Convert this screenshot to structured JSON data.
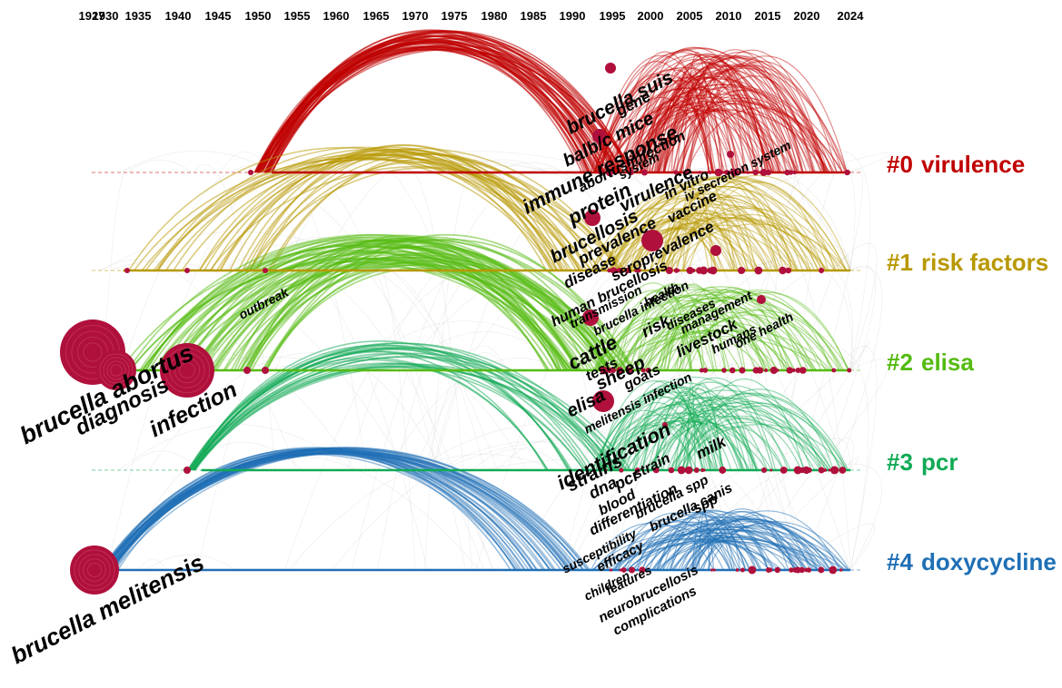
{
  "years": [
    "1927",
    "1930",
    "1935",
    "1940",
    "1945",
    "1950",
    "1955",
    "1960",
    "1965",
    "1970",
    "1975",
    "1980",
    "1985",
    "1990",
    "1995",
    "2000",
    "2005",
    "2010",
    "2015",
    "2020",
    "2024"
  ],
  "colors": {
    "year": "#ee22ee",
    "c0": "#c00000",
    "c1": "#b89800",
    "c2": "#55bb11",
    "c3": "#11aa55",
    "c4": "#1f6fb5",
    "node": "#b0103c",
    "node_ring": "#e0607a"
  },
  "clusters": [
    {
      "id": "#0",
      "label": "virulence",
      "color": "c0"
    },
    {
      "id": "#1",
      "label": "risk factors",
      "color": "c1"
    },
    {
      "id": "#2",
      "label": "elisa",
      "color": "c2"
    },
    {
      "id": "#3",
      "label": "pcr",
      "color": "c3"
    },
    {
      "id": "#4",
      "label": "doxycycline",
      "color": "c4"
    }
  ],
  "keywords": {
    "brucella_abortus": "brucella abortus",
    "diagnosis": "diagnosis",
    "infection": "infection",
    "brucella_melitensis": "brucella melitensis",
    "outbreak": "outbreak",
    "brucella_suis": "brucella suis",
    "gene": "gene",
    "balb_c_mice": "balb/c mice",
    "immune_response": "immune response",
    "abortus_infection": "abortus infection",
    "system": "system",
    "protein": "protein",
    "virulence": "virulence",
    "in_vitro": "in vitro",
    "vaccine": "vaccine",
    "iv_secretion_system": "iv secretion system",
    "brucellosis": "brucellosis",
    "prevalence": "prevalence",
    "disease": "disease",
    "seroprevalence": "seroprevalence",
    "human_brucellosis": "human brucellosis",
    "transmission": "transmission",
    "brucella_infection": "brucella infection",
    "health": "health",
    "risk": "risk",
    "diseases": "diseases",
    "management": "management",
    "livestock": "livestock",
    "humans": "humans",
    "one_health": "one health",
    "cattle": "cattle",
    "sheep": "sheep",
    "tests": "tests",
    "goats": "goats",
    "elisa": "elisa",
    "melitensis_infection": "melitensis infection",
    "identification": "identification",
    "strains": "strains",
    "dna": "dna",
    "pcr": "pcr",
    "strain": "strain",
    "milk": "milk",
    "blood": "blood",
    "differentiation": "differentiation",
    "brucella_spp": "brucella spp",
    "brucella_canis": "brucella canis",
    "spp": "spp",
    "susceptibility": "susceptibility",
    "efficacy": "efficacy",
    "children": "children",
    "features": "features",
    "neurobrucellosis": "neurobrucellosis",
    "complications": "complications"
  }
}
